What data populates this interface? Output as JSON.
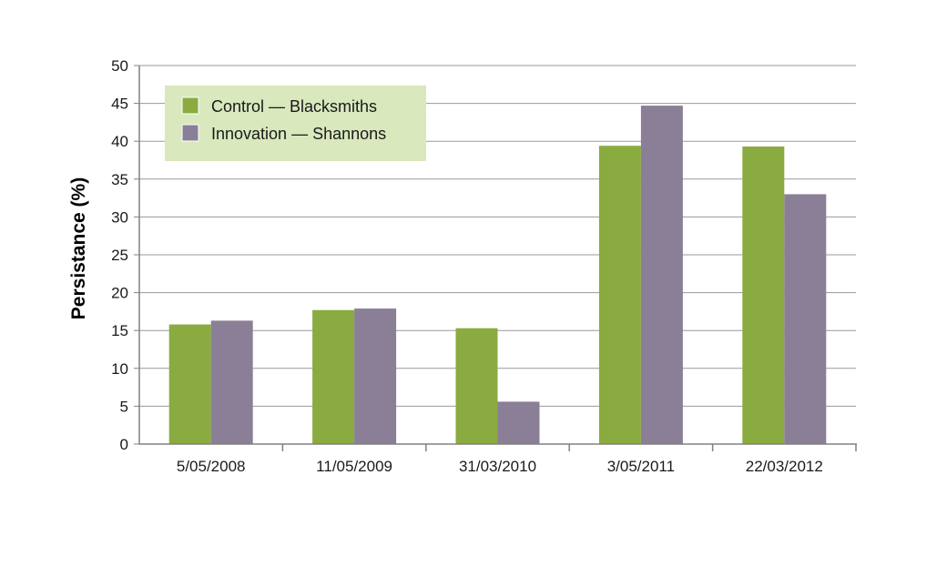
{
  "chart_data": {
    "type": "bar",
    "title": "",
    "xlabel": "",
    "ylabel": "Persistance (%)",
    "ylim": [
      0,
      50
    ],
    "yticks": [
      0,
      5,
      10,
      15,
      20,
      25,
      30,
      35,
      40,
      45,
      50
    ],
    "grid": true,
    "legend_position": "top-left",
    "categories": [
      "5/05/2008",
      "11/05/2009",
      "31/03/2010",
      "3/05/2011",
      "22/03/2012"
    ],
    "series": [
      {
        "name": "Control — Blacksmiths",
        "color": "#8aab3f",
        "values": [
          15.8,
          17.7,
          15.3,
          39.4,
          39.3
        ]
      },
      {
        "name": "Innovation — Shannons",
        "color": "#8b7f97",
        "values": [
          16.3,
          17.9,
          5.6,
          44.7,
          33.0
        ]
      }
    ],
    "colors": {
      "legend_background": "#d9e8bd",
      "grid": "#9a9a9a",
      "axis": "#808080"
    }
  }
}
